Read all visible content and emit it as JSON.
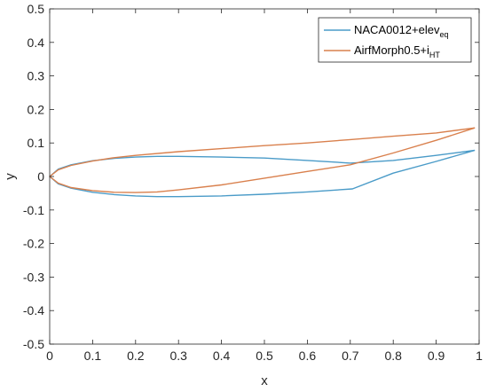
{
  "chart_data": {
    "type": "line",
    "xlabel": "x",
    "ylabel": "y",
    "xlim": [
      0,
      1
    ],
    "ylim": [
      -0.5,
      0.5
    ],
    "xticks": [
      0,
      0.1,
      0.2,
      0.3,
      0.4,
      0.5,
      0.6,
      0.7,
      0.8,
      0.9,
      1
    ],
    "yticks": [
      -0.5,
      -0.4,
      -0.3,
      -0.2,
      -0.1,
      0,
      0.1,
      0.2,
      0.3,
      0.4,
      0.5
    ],
    "grid": false,
    "legend_position": "top-right",
    "series": [
      {
        "name": "NACA0012+elev",
        "name_subscript": "eq",
        "color": "#4a9bc8",
        "x": [
          0.99,
          0.9,
          0.8,
          0.7,
          0.6,
          0.5,
          0.4,
          0.3,
          0.25,
          0.2,
          0.15,
          0.1,
          0.05,
          0.02,
          0.0,
          0.02,
          0.05,
          0.1,
          0.15,
          0.2,
          0.25,
          0.3,
          0.4,
          0.5,
          0.6,
          0.705,
          0.8,
          0.9,
          0.99
        ],
        "y": [
          0.078,
          0.063,
          0.048,
          0.04,
          0.048,
          0.055,
          0.058,
          0.06,
          0.06,
          0.058,
          0.054,
          0.047,
          0.035,
          0.022,
          0.0,
          -0.022,
          -0.035,
          -0.047,
          -0.054,
          -0.058,
          -0.06,
          -0.06,
          -0.058,
          -0.053,
          -0.046,
          -0.037,
          0.01,
          0.045,
          0.078
        ]
      },
      {
        "name": "AirfMorph0.5+i",
        "name_subscript": "HT",
        "color": "#d9804d",
        "x": [
          0.99,
          0.9,
          0.8,
          0.7,
          0.6,
          0.5,
          0.4,
          0.3,
          0.2,
          0.15,
          0.1,
          0.05,
          0.02,
          0.0,
          0.02,
          0.05,
          0.1,
          0.15,
          0.2,
          0.25,
          0.3,
          0.4,
          0.5,
          0.6,
          0.7,
          0.8,
          0.9,
          0.99
        ],
        "y": [
          0.145,
          0.13,
          0.12,
          0.11,
          0.1,
          0.092,
          0.083,
          0.074,
          0.063,
          0.056,
          0.046,
          0.033,
          0.02,
          0.0,
          -0.02,
          -0.033,
          -0.042,
          -0.047,
          -0.048,
          -0.046,
          -0.04,
          -0.025,
          -0.005,
          0.015,
          0.035,
          0.07,
          0.108,
          0.145
        ]
      }
    ]
  }
}
